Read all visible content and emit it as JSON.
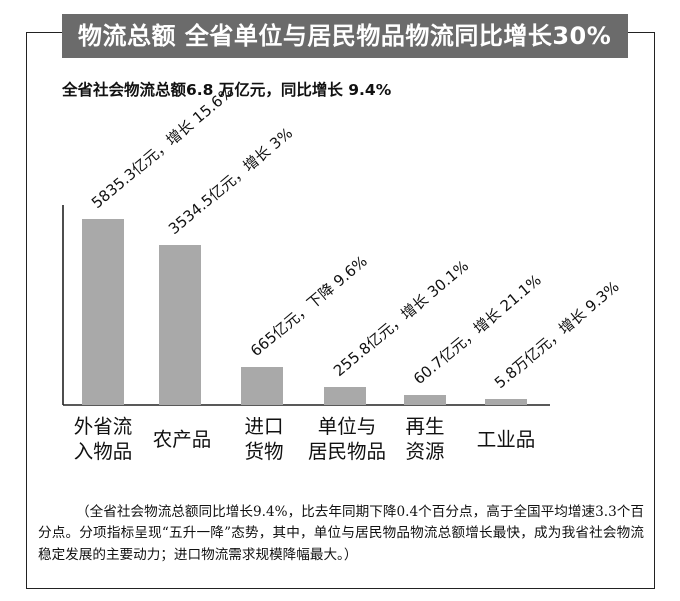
{
  "header": {
    "title": "物流总额  全省单位与居民物品物流同比增长30%",
    "subtitle": "全省社会物流总额6.8 万亿元，同比增长 9.4%"
  },
  "chart_data": {
    "type": "bar",
    "categories": [
      "外省流\n入物品",
      "农产品",
      "进口\n货物",
      "单位与\n居民物品",
      "再生\n资源",
      "工业品"
    ],
    "values": [
      5835.3,
      3534.5,
      665,
      255.8,
      60.7,
      58000
    ],
    "display_values": [
      5835.3,
      3534.5,
      665,
      255.8,
      60.7,
      5.8
    ],
    "data_labels": [
      "5835.3亿元，增长 15.6%",
      "3534.5亿元，增长 3%",
      "665亿元，下降 9.6%",
      "255.8亿元，增长 30.1%",
      "60.7亿元，增长 21.1%",
      "5.8万亿元，增长 9.3%"
    ],
    "bar_color": "#a9a9a9"
  },
  "footnote": "（全省社会物流总额同比增长9.4%，比去年同期下降0.4个百分点，高于全国平均增速3.3个百分点。分项指标呈现“五升一降”态势，其中，单位与居民物品物流总额增长最快，成为我省社会物流稳定发展的主要动力；进口物流需求规模降幅最大。）"
}
